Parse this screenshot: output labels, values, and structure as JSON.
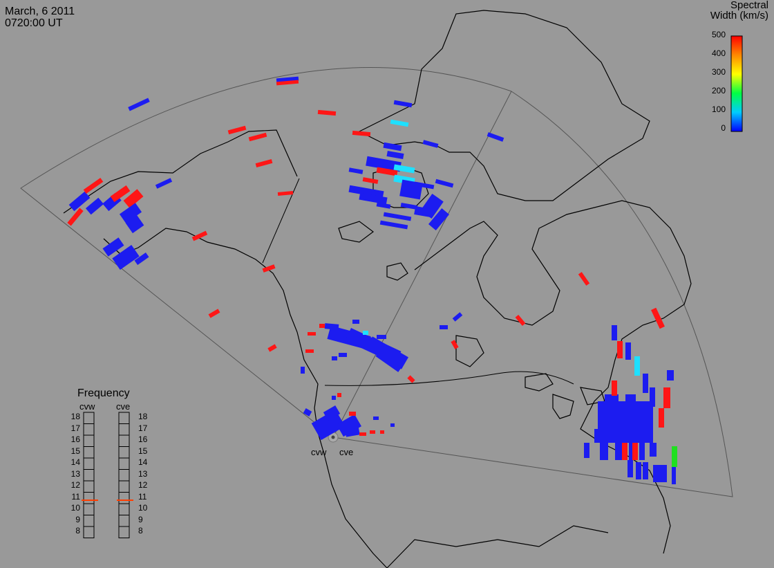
{
  "header": {
    "date": "March, 6 2011",
    "time": "0720:00 UT"
  },
  "colorbar": {
    "title_line1": "Spectral",
    "title_line2": "Width (km/s)",
    "ticks": [
      "500",
      "400",
      "300",
      "200",
      "100",
      "0"
    ],
    "range": [
      0,
      500
    ]
  },
  "radars": [
    {
      "code": "cvw",
      "frequency_mhz": 10.8
    },
    {
      "code": "cve",
      "frequency_mhz": 10.8
    }
  ],
  "frequency_panel": {
    "title": "Frequency",
    "ticks": [
      "18",
      "17",
      "16",
      "15",
      "14",
      "13",
      "12",
      "11",
      "10",
      "9",
      "8"
    ]
  },
  "colors": {
    "background": "#999999",
    "blue": "#1c1cf0",
    "red": "#ff1616",
    "cyan": "#1ee0ff",
    "green": "#20e020",
    "freq_marker": "#ff3d00"
  }
}
